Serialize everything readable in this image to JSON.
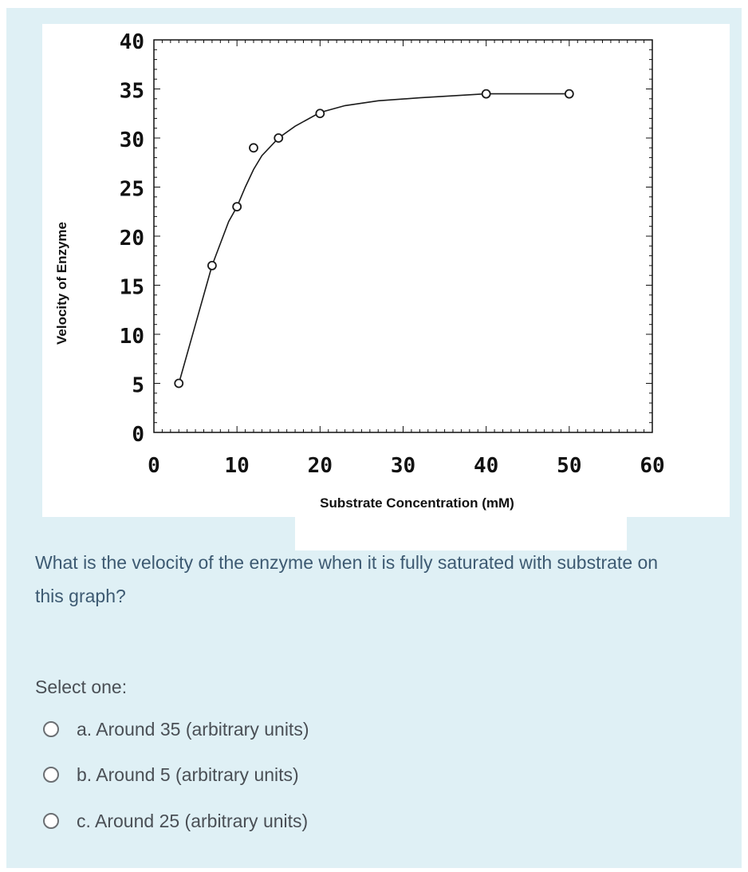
{
  "question": {
    "text": "What is the velocity of the enzyme when it is fully saturated with substrate on this graph?",
    "select_label": "Select one:",
    "options": [
      {
        "label": "a.  Around 35 (arbitrary units)"
      },
      {
        "label": "b. Around 5 (arbitrary units)"
      },
      {
        "label": "c. Around 25 (arbitrary units)"
      }
    ]
  },
  "chart_data": {
    "type": "line",
    "xlabel": "Substrate Concentration (mM)",
    "ylabel": "Velocity of Enzyme",
    "xlim": [
      0,
      60
    ],
    "ylim": [
      0,
      40
    ],
    "x_ticks": [
      "0",
      "10",
      "20",
      "30",
      "40",
      "50",
      "60"
    ],
    "y_ticks": [
      "0",
      "5",
      "10",
      "15",
      "20",
      "25",
      "30",
      "35",
      "40"
    ],
    "points": [
      {
        "x": 3,
        "y": 5
      },
      {
        "x": 7,
        "y": 17
      },
      {
        "x": 10,
        "y": 23
      },
      {
        "x": 12,
        "y": 29
      },
      {
        "x": 15,
        "y": 30
      },
      {
        "x": 20,
        "y": 32.5
      },
      {
        "x": 40,
        "y": 34.5
      },
      {
        "x": 50,
        "y": 34.5
      }
    ],
    "curve": [
      [
        3,
        5
      ],
      [
        5,
        11
      ],
      [
        7,
        17
      ],
      [
        9,
        21.5
      ],
      [
        10,
        23
      ],
      [
        11,
        25
      ],
      [
        12,
        26.8
      ],
      [
        13,
        28.2
      ],
      [
        15,
        30
      ],
      [
        17,
        31.2
      ],
      [
        20,
        32.6
      ],
      [
        23,
        33.3
      ],
      [
        27,
        33.8
      ],
      [
        32,
        34.1
      ],
      [
        40,
        34.5
      ],
      [
        50,
        34.5
      ]
    ],
    "grid": false,
    "colors": {
      "line": "#1a1a1a",
      "marker": "#1a1a1a",
      "panel_bg": "#dff0f5",
      "text": "#3d5a72"
    }
  }
}
